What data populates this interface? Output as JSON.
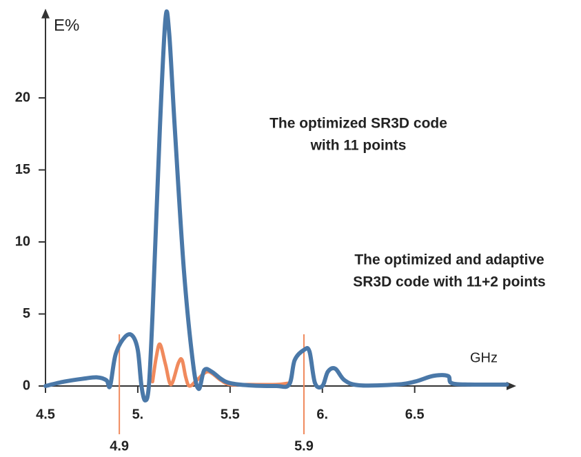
{
  "chart_data": {
    "type": "line",
    "y_label": "E%",
    "x_label": "GHz",
    "xlim": [
      4.5,
      7.05
    ],
    "ylim": [
      -2,
      26
    ],
    "xticks": [
      4.5,
      {
        "value": 5,
        "label": "5."
      },
      5.5,
      {
        "value": 6,
        "label": "6."
      },
      6.5
    ],
    "yticks": [
      0,
      5,
      10,
      15,
      20
    ],
    "series": [
      {
        "color": "#f08a5d",
        "x": [
          5.08,
          5.1,
          5.12,
          5.15,
          5.18,
          5.22,
          5.24,
          5.26,
          5.28,
          5.32,
          5.38,
          5.45,
          5.5,
          5.6,
          5.75,
          5.82
        ],
        "values": [
          0.3,
          2.0,
          2.9,
          1.5,
          0.1,
          1.6,
          1.8,
          0.6,
          0,
          0.4,
          1.0,
          0.4,
          0.1,
          0.1,
          0.1,
          0.2
        ]
      },
      {
        "color": "#4a78a8",
        "x": [
          4.5,
          4.6,
          4.7,
          4.78,
          4.83,
          4.85,
          4.88,
          4.93,
          4.97,
          5.0,
          5.02,
          5.04,
          5.06,
          5.08,
          5.12,
          5.15,
          5.17,
          5.2,
          5.25,
          5.3,
          5.33,
          5.36,
          5.4,
          5.45,
          5.5,
          5.6,
          5.75,
          5.82,
          5.85,
          5.9,
          5.93,
          5.96,
          6.0,
          6.03,
          6.07,
          6.12,
          6.2,
          6.4,
          6.5,
          6.6,
          6.68,
          6.7,
          6.8,
          7.0
        ],
        "values": [
          0,
          0.3,
          0.5,
          0.6,
          0.4,
          0,
          2.2,
          3.4,
          3.5,
          2.5,
          0,
          -1,
          0,
          5,
          18,
          25.5,
          24.5,
          18,
          8,
          1.5,
          -0.2,
          1.1,
          1.0,
          0.5,
          0.2,
          0.05,
          0,
          0.1,
          1.8,
          2.5,
          2.4,
          0.2,
          0,
          1.0,
          1.2,
          0.4,
          0.05,
          0.1,
          0.3,
          0.7,
          0.7,
          0.2,
          0.1,
          0.1
        ]
      }
    ],
    "markers": {
      "color": "#f08a5d",
      "items": [
        {
          "value": 4.9,
          "label": "4.9"
        },
        {
          "value": 5.9,
          "label": "5.9"
        }
      ]
    },
    "annotations": [
      {
        "color": "#8a8a8a",
        "lines": [
          "The optimized SR3D code",
          "with 11 points"
        ]
      },
      {
        "color": "#f08a5d",
        "lines": [
          "The optimized and adaptive",
          "SR3D code with 11+2 points"
        ]
      }
    ]
  }
}
